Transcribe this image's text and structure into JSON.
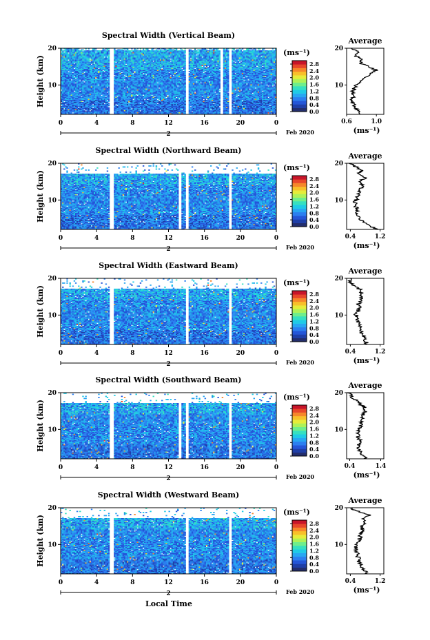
{
  "colors": {
    "colormap": [
      "#232e6e",
      "#1f3fa8",
      "#2456d8",
      "#2b7ff0",
      "#27a7f2",
      "#1fcbe6",
      "#36e0c0",
      "#6fee8c",
      "#aef258",
      "#e6ec3a",
      "#f8c02a",
      "#f6872a",
      "#e8472a",
      "#c8152a"
    ],
    "blank": "#ffffff"
  },
  "common": {
    "x_ticks": [
      "0",
      "4",
      "8",
      "12",
      "16",
      "20",
      "0"
    ],
    "height_ticks": [
      "20",
      "10"
    ],
    "ylabel": "Height (km)",
    "date_label": "2",
    "month_year": "Feb 2020",
    "xlabel": "Local Time",
    "units_label": "(ms⁻¹)",
    "colorbar_ticks": [
      "2.8",
      "2.4",
      "2.0",
      "1.6",
      "1.2",
      "0.8",
      "0.4",
      "0.0"
    ],
    "avg_title": "Average",
    "avg_units": "(ms⁻¹)"
  },
  "chart_data": [
    {
      "type": "heatmap",
      "title": "Spectral Width (Vertical Beam)",
      "xlim": [
        0,
        24
      ],
      "ylim": [
        2,
        20
      ],
      "data_gaps_hours": [
        [
          5.5,
          5.9
        ],
        [
          13.9,
          14.2
        ],
        [
          17.8,
          18.0
        ],
        [
          18.7,
          19.0
        ]
      ],
      "profile": {
        "type": "line",
        "xlim": [
          0.6,
          1.1
        ],
        "xticks": [
          "0.6",
          "1.0"
        ],
        "heights": [
          20,
          19,
          18,
          17,
          16,
          15,
          14,
          13,
          12,
          11,
          10,
          9,
          8,
          7,
          6,
          5,
          4,
          3,
          2
        ],
        "values": [
          0.68,
          0.75,
          0.7,
          0.82,
          0.78,
          0.9,
          1.0,
          0.92,
          0.85,
          0.8,
          0.72,
          0.7,
          0.68,
          0.7,
          0.66,
          0.68,
          0.72,
          0.76,
          0.78
        ]
      }
    },
    {
      "type": "heatmap",
      "title": "Spectral Width (Northward Beam)",
      "xlim": [
        0,
        24
      ],
      "ylim": [
        2,
        20
      ],
      "data_gaps_hours": [
        [
          5.5,
          5.9
        ],
        [
          13.1,
          13.4
        ],
        [
          13.9,
          14.2
        ],
        [
          18.7,
          19.0
        ]
      ],
      "profile": {
        "type": "line",
        "xlim": [
          0.3,
          1.3
        ],
        "xticks": [
          "0.4",
          "1.2"
        ],
        "heights": [
          20,
          19,
          18,
          17,
          16,
          15,
          14,
          13,
          12,
          11,
          10,
          9,
          8,
          7,
          6,
          5,
          4,
          3,
          2
        ],
        "values": [
          0.4,
          0.55,
          0.7,
          0.6,
          0.8,
          0.62,
          0.72,
          0.68,
          0.62,
          0.6,
          0.55,
          0.52,
          0.56,
          0.58,
          0.62,
          0.66,
          0.72,
          0.92,
          1.15
        ]
      }
    },
    {
      "type": "heatmap",
      "title": "Spectral Width (Eastward Beam)",
      "xlim": [
        0,
        24
      ],
      "ylim": [
        2,
        20
      ],
      "data_gaps_hours": [
        [
          5.5,
          5.9
        ],
        [
          13.9,
          14.2
        ],
        [
          18.7,
          19.0
        ]
      ],
      "profile": {
        "type": "line",
        "xlim": [
          0.3,
          1.3
        ],
        "xticks": [
          "0.4",
          "1.2"
        ],
        "heights": [
          20,
          19,
          18,
          17,
          16,
          15,
          14,
          13,
          12,
          11,
          10,
          9,
          8,
          7,
          6,
          5,
          4,
          3,
          2
        ],
        "values": [
          0.45,
          0.38,
          0.5,
          0.65,
          0.72,
          0.68,
          0.7,
          0.62,
          0.66,
          0.6,
          0.55,
          0.58,
          0.62,
          0.66,
          0.68,
          0.7,
          0.75,
          0.8,
          0.85
        ]
      }
    },
    {
      "type": "heatmap",
      "title": "Spectral Width (Southward Beam)",
      "xlim": [
        0,
        24
      ],
      "ylim": [
        2,
        20
      ],
      "data_gaps_hours": [
        [
          5.5,
          5.9
        ],
        [
          13.1,
          13.4
        ],
        [
          13.9,
          14.2
        ],
        [
          18.7,
          19.0
        ]
      ],
      "profile": {
        "type": "line",
        "xlim": [
          0.3,
          1.5
        ],
        "xticks": [
          "0.4",
          "1.4"
        ],
        "heights": [
          20,
          19,
          18,
          17,
          16,
          15,
          14,
          13,
          12,
          11,
          10,
          9,
          8,
          7,
          6,
          5,
          4,
          3,
          2
        ],
        "values": [
          0.38,
          0.45,
          0.6,
          0.72,
          0.88,
          0.9,
          0.84,
          0.8,
          0.78,
          0.75,
          0.7,
          0.65,
          0.68,
          0.72,
          0.7,
          0.68,
          0.72,
          0.8,
          0.95
        ]
      }
    },
    {
      "type": "heatmap",
      "title": "Spectral Width (Westward Beam)",
      "xlim": [
        0,
        24
      ],
      "ylim": [
        2,
        20
      ],
      "data_gaps_hours": [
        [
          5.5,
          5.9
        ],
        [
          13.9,
          14.2
        ],
        [
          18.7,
          19.0
        ]
      ],
      "profile": {
        "type": "line",
        "xlim": [
          0.3,
          1.3
        ],
        "xticks": [
          "0.4",
          "1.2"
        ],
        "heights": [
          20,
          19,
          18,
          17,
          16,
          15,
          14,
          13,
          12,
          11,
          10,
          9,
          8,
          7,
          6,
          5,
          4,
          3,
          2
        ],
        "values": [
          0.4,
          0.6,
          0.9,
          0.75,
          0.82,
          0.7,
          0.72,
          0.7,
          0.66,
          0.62,
          0.58,
          0.55,
          0.58,
          0.6,
          0.62,
          0.64,
          0.68,
          0.76,
          0.86
        ]
      }
    }
  ]
}
